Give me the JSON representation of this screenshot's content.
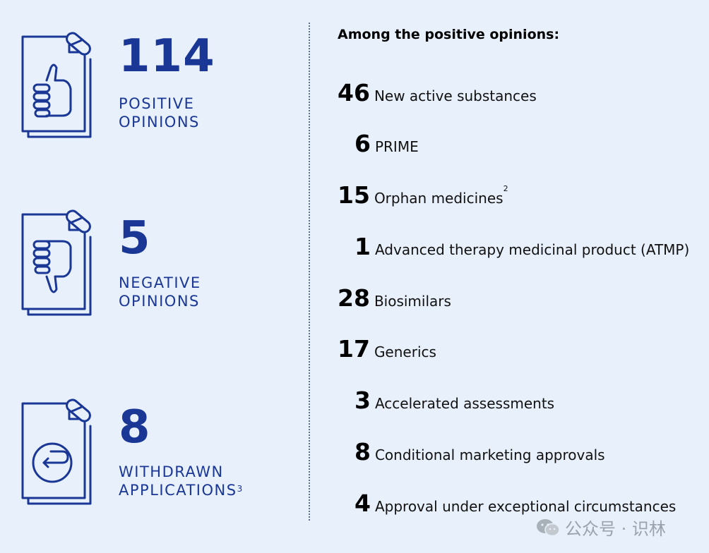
{
  "stats": [
    {
      "number": "114",
      "label_line1": "POSITIVE",
      "label_line2": "OPINIONS",
      "note": ""
    },
    {
      "number": "5",
      "label_line1": "NEGATIVE",
      "label_line2": "OPINIONS",
      "note": ""
    },
    {
      "number": "8",
      "label_line1": "WITHDRAWN",
      "label_line2": "APPLICATIONS",
      "note": "3"
    }
  ],
  "heading": "Among the positive opinions:",
  "items": [
    {
      "number": "46",
      "label": "New active substances",
      "note": ""
    },
    {
      "number": "6",
      "label": "PRIME",
      "note": ""
    },
    {
      "number": "15",
      "label": "Orphan medicines",
      "note": "2"
    },
    {
      "number": "1",
      "label": "Advanced therapy medicinal product (ATMP)",
      "note": ""
    },
    {
      "number": "28",
      "label": "Biosimilars",
      "note": ""
    },
    {
      "number": "17",
      "label": "Generics",
      "note": ""
    },
    {
      "number": "3",
      "label": "Accelerated assessments",
      "note": ""
    },
    {
      "number": "8",
      "label": "Conditional marketing approvals",
      "note": ""
    },
    {
      "number": "4",
      "label": "Approval under exceptional circumstances",
      "note": ""
    }
  ],
  "watermark": "公众号 · 识林",
  "colors": {
    "background": "#e8f0fc",
    "accent": "#1a3796",
    "text": "#000000"
  },
  "icons": [
    "thumbs-up-document-icon",
    "thumbs-down-document-icon",
    "withdrawal-document-icon",
    "wechat-icon"
  ]
}
